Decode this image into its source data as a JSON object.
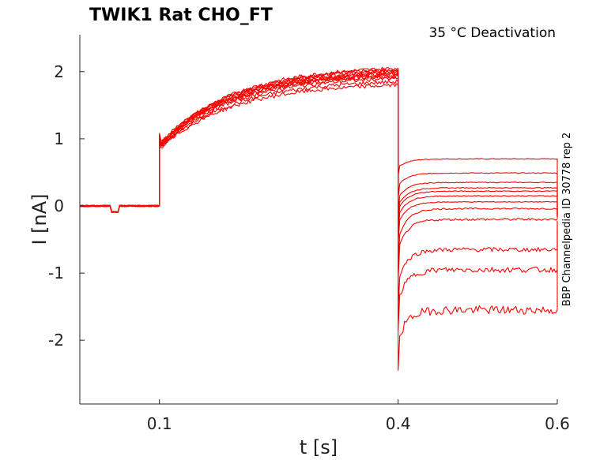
{
  "chart_data": {
    "type": "line",
    "title": "TWIK1  Rat  CHO_FT",
    "subtitle": "35 °C  Deactivation",
    "side_label": "BBP Channelpedia ID 30778 rep 2",
    "xlabel": "t [s]",
    "ylabel": "I [nA]",
    "xlim": [
      0.0,
      0.6
    ],
    "ylim": [
      -2.95,
      2.55
    ],
    "xticks": [
      0.1,
      0.4,
      0.6
    ],
    "xtick_labels": [
      "0.1",
      "0.4",
      "0.6"
    ],
    "yticks": [
      2,
      1,
      0,
      -1,
      -2
    ],
    "ytick_labels": [
      "2",
      "1",
      "0",
      "-1",
      "-2"
    ],
    "grid": false,
    "color": "#ff0000",
    "protocol": {
      "prepulse_start": 0.1,
      "step_start": 0.4,
      "step_end": 0.6,
      "artifact_window": [
        0.04,
        0.05
      ]
    },
    "series": [
      {
        "prepulse_start": 0.9,
        "prepulse_end": 2.03,
        "step_level": 0.7,
        "tail_level": -0.05
      },
      {
        "prepulse_start": 0.88,
        "prepulse_end": 1.98,
        "step_level": 0.49,
        "tail_level": -0.06
      },
      {
        "prepulse_start": 0.93,
        "prepulse_end": 2.0,
        "step_level": 0.35,
        "tail_level": -0.04
      },
      {
        "prepulse_start": 0.86,
        "prepulse_end": 1.93,
        "step_level": 0.27,
        "tail_level": -0.07
      },
      {
        "prepulse_start": 0.91,
        "prepulse_end": 1.96,
        "step_level": 0.22,
        "tail_level": -0.05
      },
      {
        "prepulse_start": 0.89,
        "prepulse_end": 2.05,
        "step_level": 0.15,
        "tail_level": -0.06
      },
      {
        "prepulse_start": 0.87,
        "prepulse_end": 1.9,
        "step_level": 0.06,
        "tail_level": -0.08
      },
      {
        "prepulse_start": 0.84,
        "prepulse_end": 1.85,
        "step_level": -0.04,
        "tail_level": -0.09
      },
      {
        "prepulse_start": 0.9,
        "prepulse_end": 1.97,
        "step_level": -0.2,
        "tail_level": -0.1
      },
      {
        "prepulse_start": 0.92,
        "prepulse_end": 2.02,
        "step_level": -0.65,
        "tail_level": -0.12
      },
      {
        "prepulse_start": 0.88,
        "prepulse_end": 1.94,
        "step_level": -0.95,
        "tail_level": -0.15
      },
      {
        "prepulse_start": 0.85,
        "prepulse_end": 1.8,
        "step_level": -1.55,
        "tail_level": -0.24
      }
    ]
  }
}
